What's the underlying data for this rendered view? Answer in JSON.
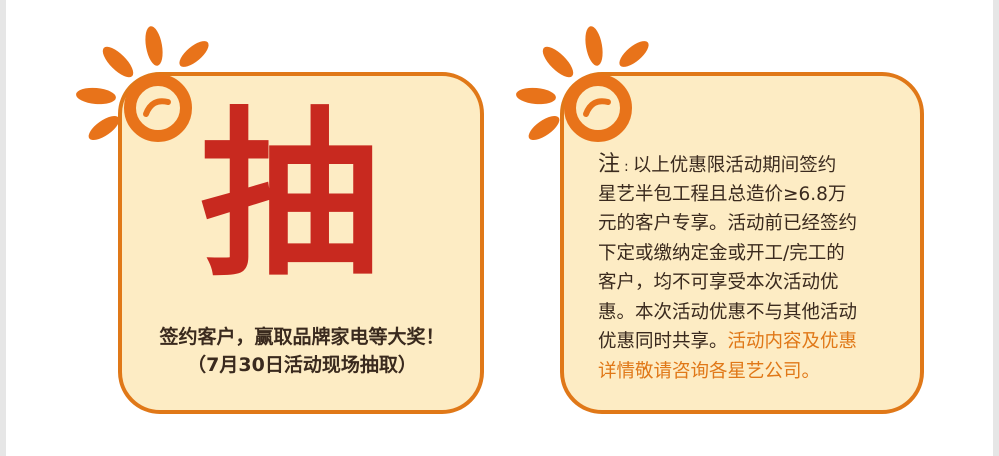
{
  "left_card": {
    "big_char": "抽",
    "line1": "签约客户，赢取品牌家电等大奖！",
    "line2": "（7月30日活动现场抽取）"
  },
  "right_card": {
    "note_mark": "注",
    "note_colon": ":",
    "lines": [
      "以上优惠限活动期间签约",
      "星艺半包工程且总造价≥6.8万",
      "元的客户专享。活动前已经签约",
      "下定或缴纳定金或开工/完工的",
      "客户，均不可享受本次活动优",
      "惠。本次活动优惠不与其他活动"
    ],
    "line7_dark": "优惠同时共享。",
    "line7_orange": "活动内容及优惠",
    "line8_orange": "详情敬请咨询各星艺公司。"
  },
  "colors": {
    "card_fill": "#fdecc4",
    "card_border": "#e07818",
    "big_char": "#c8291f",
    "highlight_text": "#e07818",
    "body_text": "#3a2a1e"
  },
  "icons": [
    "sun-icon"
  ]
}
